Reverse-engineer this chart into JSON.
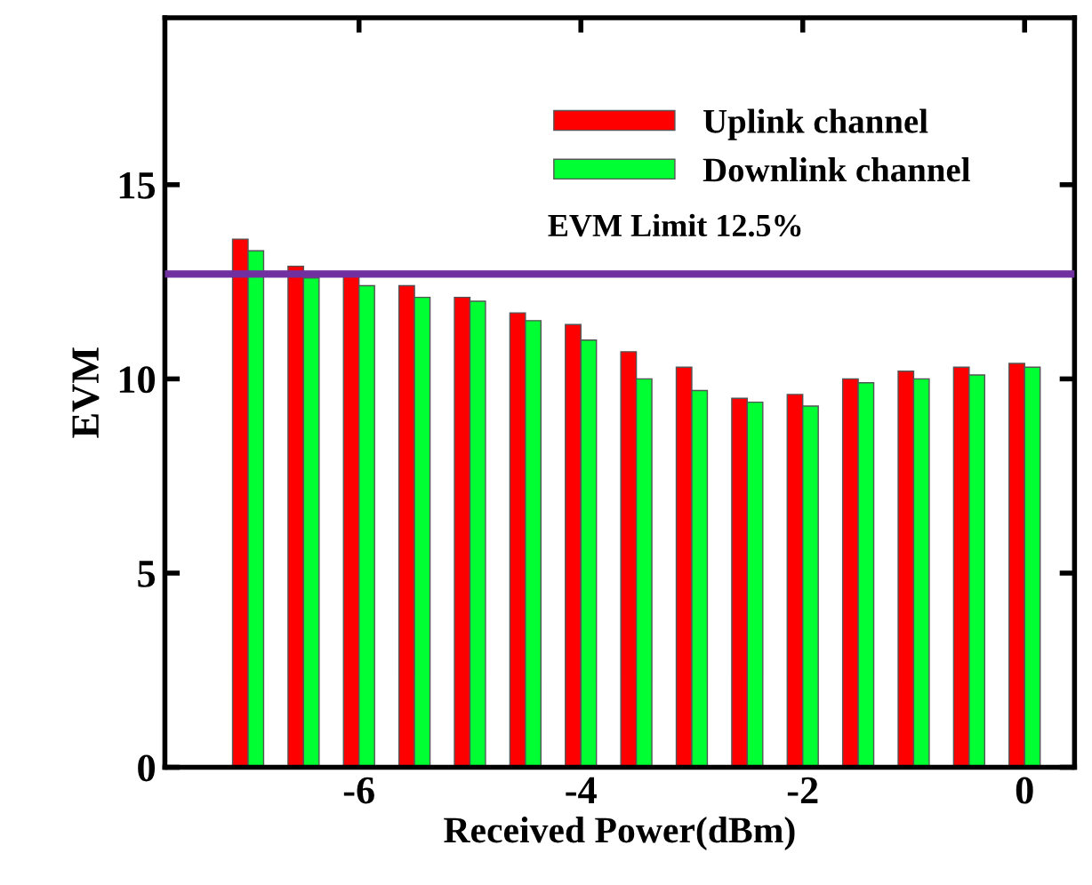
{
  "chart_data": {
    "type": "bar",
    "xlabel": "Received Power(dBm)",
    "ylabel": "EVM",
    "x": [
      -7,
      -6.5,
      -6,
      -5.5,
      -5,
      -4.5,
      -4,
      -3.5,
      -3,
      -2.5,
      -2,
      -1.5,
      -1,
      -0.5,
      0
    ],
    "series": [
      {
        "name": "Uplink channel",
        "color": "#ff0000",
        "values": [
          13.6,
          12.9,
          12.7,
          12.4,
          12.1,
          11.7,
          11.4,
          10.7,
          10.3,
          9.5,
          9.6,
          10.0,
          10.2,
          10.3,
          10.4
        ]
      },
      {
        "name": "Downlink channel",
        "color": "#00ff33",
        "values": [
          13.3,
          12.6,
          12.4,
          12.1,
          12.0,
          11.5,
          11.0,
          10.0,
          9.7,
          9.4,
          9.3,
          9.9,
          10.0,
          10.1,
          10.3
        ]
      }
    ],
    "xlim": [
      -7.75,
      0.45
    ],
    "xticks": [
      -6,
      -4,
      -2,
      0
    ],
    "ylim": [
      0,
      19.3
    ],
    "yticks": [
      0,
      5,
      10,
      15
    ],
    "ref_lines": [
      {
        "axis": "y",
        "value": 12.7,
        "label": "EVM Limit 12.5%",
        "color": "#7030a0"
      }
    ],
    "legend": "top right",
    "grid": false
  }
}
